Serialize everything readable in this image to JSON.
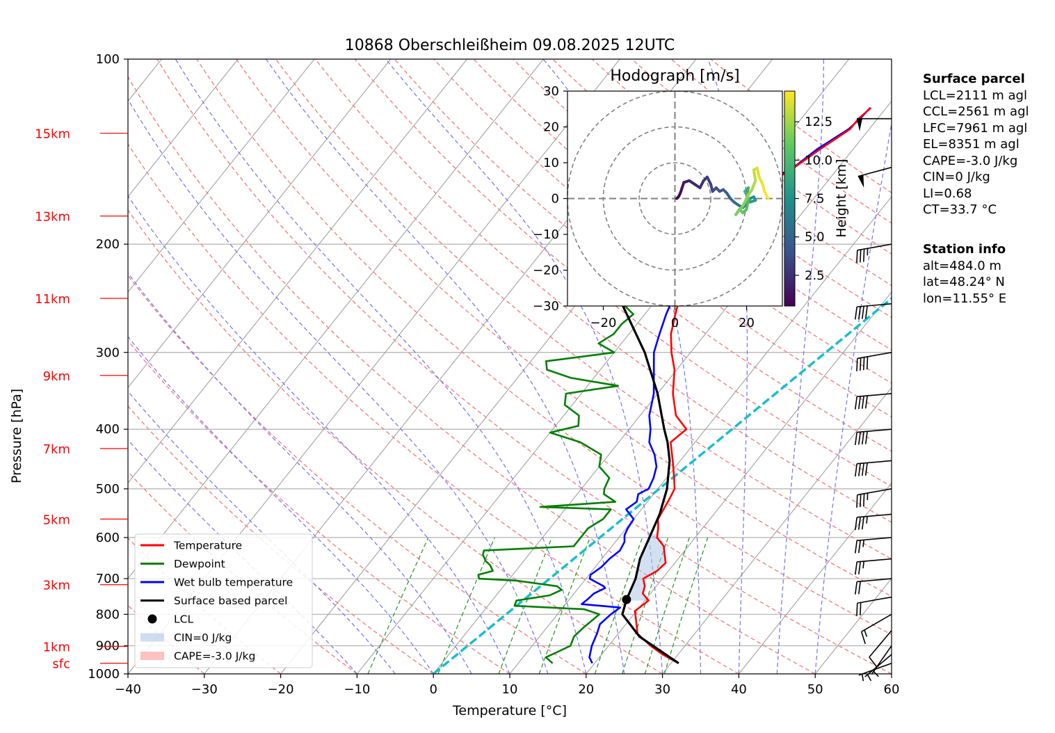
{
  "chart_data": {
    "type": "line",
    "title": "10868 Oberschleißheim 09.08.2025 12UTC",
    "xlabel": "Temperature [°C]",
    "ylabel": "Pressure [hPa]",
    "xlim": [
      -40,
      60
    ],
    "ylim": [
      1000,
      100
    ],
    "y_log_scale": true,
    "x_ticks": [
      -40,
      -30,
      -20,
      -10,
      0,
      10,
      20,
      30,
      40,
      50,
      60
    ],
    "y_ticks": [
      100,
      200,
      300,
      400,
      500,
      600,
      700,
      800,
      900,
      1000
    ],
    "grid": true,
    "height_labels": [
      {
        "label": "sfc",
        "p": 961
      },
      {
        "label": "1km",
        "p": 902
      },
      {
        "label": "3km",
        "p": 716
      },
      {
        "label": "5km",
        "p": 560
      },
      {
        "label": "7km",
        "p": 430
      },
      {
        "label": "9km",
        "p": 327
      },
      {
        "label": "11km",
        "p": 245
      },
      {
        "label": "13km",
        "p": 180
      },
      {
        "label": "15km",
        "p": 132
      }
    ],
    "series": [
      {
        "name": "Temperature",
        "color": "#ff0000",
        "points": [
          [
            961,
            31
          ],
          [
            930,
            28
          ],
          [
            900,
            25.5
          ],
          [
            860,
            22.5
          ],
          [
            820,
            21
          ],
          [
            790,
            19.8
          ],
          [
            760,
            20.5
          ],
          [
            740,
            19
          ],
          [
            720,
            18.5
          ],
          [
            700,
            17.5
          ],
          [
            680,
            18.5
          ],
          [
            660,
            18.8
          ],
          [
            640,
            17.8
          ],
          [
            620,
            16.8
          ],
          [
            600,
            15
          ],
          [
            580,
            14.2
          ],
          [
            560,
            13.2
          ],
          [
            520,
            12.6
          ],
          [
            500,
            12.2
          ],
          [
            480,
            11
          ],
          [
            450,
            9
          ],
          [
            420,
            6.8
          ],
          [
            400,
            7.5
          ],
          [
            380,
            4.7
          ],
          [
            350,
            2
          ],
          [
            320,
            -0.3
          ],
          [
            300,
            -2.5
          ],
          [
            280,
            -4.5
          ],
          [
            260,
            -6
          ],
          [
            240,
            -7.5
          ],
          [
            230,
            -8
          ],
          [
            215,
            -9.8
          ],
          [
            200,
            -9.6
          ],
          [
            190,
            -9.5
          ],
          [
            180,
            -8.7
          ],
          [
            170,
            -9.7
          ],
          [
            160,
            -9.3
          ],
          [
            155,
            -6.7
          ],
          [
            150,
            -5.8
          ],
          [
            140,
            -4.3
          ],
          [
            130,
            -2.5
          ],
          [
            125,
            -2.5
          ],
          [
            120,
            -2.0
          ]
        ]
      },
      {
        "name": "Dewpoint",
        "color": "#008000",
        "points": [
          [
            961,
            14.5
          ],
          [
            940,
            13
          ],
          [
            920,
            14
          ],
          [
            900,
            15
          ],
          [
            870,
            14.5
          ],
          [
            840,
            14.8
          ],
          [
            800,
            15.5
          ],
          [
            785,
            13
          ],
          [
            775,
            3.5
          ],
          [
            760,
            3.2
          ],
          [
            745,
            7
          ],
          [
            730,
            8
          ],
          [
            720,
            7
          ],
          [
            705,
            1
          ],
          [
            700,
            -4
          ],
          [
            690,
            -4.5
          ],
          [
            680,
            -3
          ],
          [
            665,
            -4
          ],
          [
            655,
            -5
          ],
          [
            640,
            -6
          ],
          [
            630,
            -6.3
          ],
          [
            620,
            5
          ],
          [
            600,
            5
          ],
          [
            580,
            5
          ],
          [
            560,
            6
          ],
          [
            540,
            6
          ],
          [
            535,
            -3.5
          ],
          [
            525,
            5.8
          ],
          [
            510,
            3.5
          ],
          [
            500,
            3
          ],
          [
            480,
            2.5
          ],
          [
            460,
            0
          ],
          [
            440,
            -1
          ],
          [
            420,
            -5
          ],
          [
            405,
            -10
          ],
          [
            395,
            -7
          ],
          [
            380,
            -8
          ],
          [
            365,
            -11
          ],
          [
            350,
            -12
          ],
          [
            340,
            -6
          ],
          [
            330,
            -13
          ],
          [
            320,
            -17
          ],
          [
            310,
            -18
          ],
          [
            300,
            -10
          ],
          [
            290,
            -13
          ],
          [
            280,
            -12
          ],
          [
            270,
            -12
          ],
          [
            260,
            -11.5
          ],
          [
            250,
            -14
          ],
          [
            240,
            -17
          ],
          [
            230,
            -15
          ],
          [
            220,
            -16
          ],
          [
            210,
            -16
          ],
          [
            200,
            -13.5
          ],
          [
            190,
            -20
          ],
          [
            185,
            -21
          ],
          [
            180,
            -22
          ],
          [
            170,
            -21
          ],
          [
            160,
            -17
          ],
          [
            155,
            -27
          ],
          [
            150,
            -30.5
          ],
          [
            147,
            -26.5
          ],
          [
            140,
            -25
          ],
          [
            132,
            -24.5
          ],
          [
            125,
            -24
          ],
          [
            120,
            -23.5
          ]
        ]
      },
      {
        "name": "Wet bulb temperature",
        "color": "#0000ff",
        "points": [
          [
            961,
            19.7
          ],
          [
            940,
            18.7
          ],
          [
            900,
            17.8
          ],
          [
            860,
            17.2
          ],
          [
            830,
            16.6
          ],
          [
            800,
            17
          ],
          [
            780,
            17.5
          ],
          [
            770,
            12.1
          ],
          [
            755,
            12.4
          ],
          [
            740,
            12.6
          ],
          [
            725,
            13.5
          ],
          [
            720,
            13.1
          ],
          [
            700,
            10.5
          ],
          [
            690,
            10.2
          ],
          [
            670,
            10.8
          ],
          [
            650,
            11
          ],
          [
            630,
            11.5
          ],
          [
            610,
            11.2
          ],
          [
            595,
            10.5
          ],
          [
            580,
            10.2
          ],
          [
            560,
            10
          ],
          [
            540,
            8
          ],
          [
            525,
            8.6
          ],
          [
            510,
            8
          ],
          [
            500,
            8.8
          ],
          [
            480,
            8.3
          ],
          [
            460,
            7.5
          ],
          [
            440,
            6
          ],
          [
            420,
            4
          ],
          [
            400,
            2.8
          ],
          [
            380,
            1.2
          ],
          [
            350,
            -0.5
          ],
          [
            320,
            -3
          ],
          [
            300,
            -4.8
          ],
          [
            280,
            -6
          ],
          [
            260,
            -7.2
          ],
          [
            240,
            -8.2
          ],
          [
            220,
            -9.5
          ],
          [
            200,
            -10.5
          ],
          [
            190,
            -10.3
          ],
          [
            180,
            -9.6
          ],
          [
            170,
            -10.1
          ],
          [
            160,
            -9.4
          ],
          [
            155,
            -7.1
          ],
          [
            150,
            -5.9
          ],
          [
            140,
            -4.7
          ],
          [
            130,
            -2.7
          ],
          [
            125,
            -2.3
          ],
          [
            120,
            -2.1
          ]
        ]
      },
      {
        "name": "Surface based parcel",
        "color": "#000000",
        "points": [
          [
            961,
            31
          ],
          [
            870,
            23.1
          ],
          [
            800,
            18.5
          ],
          [
            757,
            17.5
          ],
          [
            700,
            16.5
          ],
          [
            650,
            15
          ],
          [
            600,
            14
          ],
          [
            550,
            12.9
          ],
          [
            500,
            11.2
          ],
          [
            450,
            8.6
          ],
          [
            420,
            6.4
          ],
          [
            400,
            4.6
          ],
          [
            350,
            0
          ],
          [
            300,
            -6
          ],
          [
            250,
            -14.1
          ],
          [
            200,
            -22.6
          ],
          [
            160,
            -30.4
          ],
          [
            120,
            -40
          ]
        ]
      }
    ],
    "lcl_point": {
      "name": "LCL",
      "p": 757,
      "t": 17.5
    },
    "shaded_regions": [
      {
        "name": "CIN=0 J/kg",
        "color": "#aec7e8"
      },
      {
        "name": "CAPE=-3.0 J/kg",
        "color": "#ff9896"
      }
    ],
    "cyan_line": {
      "p_start": 1000,
      "t_start": 0,
      "p_end": 130,
      "t_end": 30
    },
    "wind_barbs": [
      {
        "p": 961,
        "speed_kt": 5,
        "dir": 250
      },
      {
        "p": 930,
        "speed_kt": 5,
        "dir": 230
      },
      {
        "p": 900,
        "speed_kt": 5,
        "dir": 215
      },
      {
        "p": 850,
        "speed_kt": 10,
        "dir": 220
      },
      {
        "p": 800,
        "speed_kt": 15,
        "dir": 240
      },
      {
        "p": 750,
        "speed_kt": 20,
        "dir": 260
      },
      {
        "p": 700,
        "speed_kt": 20,
        "dir": 265
      },
      {
        "p": 650,
        "speed_kt": 25,
        "dir": 265
      },
      {
        "p": 600,
        "speed_kt": 25,
        "dir": 265
      },
      {
        "p": 550,
        "speed_kt": 35,
        "dir": 265
      },
      {
        "p": 500,
        "speed_kt": 35,
        "dir": 260
      },
      {
        "p": 450,
        "speed_kt": 40,
        "dir": 265
      },
      {
        "p": 400,
        "speed_kt": 40,
        "dir": 265
      },
      {
        "p": 350,
        "speed_kt": 40,
        "dir": 265
      },
      {
        "p": 300,
        "speed_kt": 40,
        "dir": 260
      },
      {
        "p": 250,
        "speed_kt": 40,
        "dir": 265
      },
      {
        "p": 200,
        "speed_kt": 35,
        "dir": 260
      },
      {
        "p": 150,
        "speed_kt": 50,
        "dir": 255
      },
      {
        "p": 125,
        "speed_kt": 50,
        "dir": 270
      }
    ],
    "legend": {
      "placement": "lower-left",
      "entries": [
        "Temperature",
        "Dewpoint",
        "Wet bulb temperature",
        "Surface based parcel",
        "LCL",
        "CIN=0 J/kg",
        "CAPE=-3.0 J/kg"
      ]
    },
    "hodograph": {
      "title": "Hodograph [m/s]",
      "xlim": [
        -30,
        30
      ],
      "ylim": [
        -30,
        30
      ],
      "x_ticks": [
        -20,
        0,
        20
      ],
      "y_ticks": [
        -30,
        -20,
        -10,
        0,
        10,
        20,
        30
      ],
      "rings": [
        10,
        20,
        30
      ],
      "colorbar_label": "Height [km]",
      "colorbar_ticks": [
        2.5,
        5.0,
        7.5,
        10.0,
        12.5
      ],
      "colorbar_range": [
        0.5,
        14.5
      ],
      "colormap": [
        "#440154",
        "#3b528b",
        "#21918c",
        "#5ec962",
        "#fde725"
      ],
      "points": [
        [
          0.5,
          0,
          0.5
        ],
        [
          1,
          0.5,
          0.8
        ],
        [
          1.5,
          1.5,
          1.0
        ],
        [
          2,
          3,
          1.3
        ],
        [
          2.5,
          4.5,
          1.6
        ],
        [
          4,
          5,
          1.9
        ],
        [
          5.5,
          4,
          2.2
        ],
        [
          7,
          3,
          2.5
        ],
        [
          8,
          5,
          2.8
        ],
        [
          9,
          6,
          3.1
        ],
        [
          10,
          4,
          3.4
        ],
        [
          10.5,
          2,
          3.7
        ],
        [
          11.5,
          3,
          4.0
        ],
        [
          12.5,
          2,
          4.3
        ],
        [
          13.5,
          2.5,
          4.6
        ],
        [
          14.5,
          1.5,
          4.9
        ],
        [
          15.5,
          0,
          5.2
        ],
        [
          16.5,
          -1,
          5.6
        ],
        [
          18,
          -2,
          6.0
        ],
        [
          19,
          -2.5,
          6.4
        ],
        [
          20,
          -1.5,
          6.8
        ],
        [
          21,
          0,
          7.2
        ],
        [
          22,
          0.5,
          7.6
        ],
        [
          22.5,
          -0.5,
          8.0
        ],
        [
          21,
          -1,
          8.4
        ],
        [
          20,
          1,
          8.8
        ],
        [
          20.5,
          3,
          9.2
        ],
        [
          19.5,
          2,
          9.6
        ],
        [
          20.5,
          0,
          10.0
        ],
        [
          20,
          -3,
          10.4
        ],
        [
          19,
          -4,
          10.8
        ],
        [
          18,
          -3,
          11.2
        ],
        [
          17,
          -4.5,
          11.6
        ],
        [
          19,
          -2,
          12.0
        ],
        [
          20.5,
          1,
          12.4
        ],
        [
          21.5,
          2.5,
          12.8
        ],
        [
          22.5,
          5,
          13.2
        ],
        [
          22,
          8,
          13.5
        ],
        [
          23,
          8.5,
          13.8
        ],
        [
          23.5,
          6,
          14.0
        ],
        [
          24.5,
          4,
          14.2
        ],
        [
          25,
          2,
          14.4
        ],
        [
          26,
          0,
          14.5
        ]
      ]
    }
  },
  "surface_panel": {
    "header": "Surface parcel",
    "lines": [
      "LCL=2111 m agl",
      "CCL=2561 m agl",
      "LFC=7961 m agl",
      "EL=8351 m agl",
      "CAPE=-3.0 J/kg",
      "CIN=0 J/kg",
      "LI=0.68",
      "CT=33.7 °C"
    ]
  },
  "station_panel": {
    "header": "Station info",
    "lines": [
      "alt=484.0 m",
      "lat=48.24° N",
      "lon=11.55° E"
    ]
  }
}
